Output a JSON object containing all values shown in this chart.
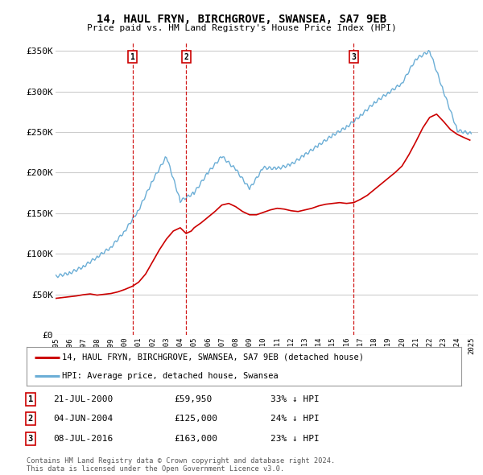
{
  "title": "14, HAUL FRYN, BIRCHGROVE, SWANSEA, SA7 9EB",
  "subtitle": "Price paid vs. HM Land Registry's House Price Index (HPI)",
  "xlim": [
    1995.0,
    2025.5
  ],
  "ylim": [
    0,
    360000
  ],
  "yticks": [
    0,
    50000,
    100000,
    150000,
    200000,
    250000,
    300000,
    350000
  ],
  "ytick_labels": [
    "£0",
    "£50K",
    "£100K",
    "£150K",
    "£200K",
    "£250K",
    "£300K",
    "£350K"
  ],
  "xticks": [
    1995,
    1996,
    1997,
    1998,
    1999,
    2000,
    2001,
    2002,
    2003,
    2004,
    2005,
    2006,
    2007,
    2008,
    2009,
    2010,
    2011,
    2012,
    2013,
    2014,
    2015,
    2016,
    2017,
    2018,
    2019,
    2020,
    2021,
    2022,
    2023,
    2024,
    2025
  ],
  "transactions": [
    {
      "date": 2000.55,
      "price": 59950,
      "label": "1",
      "pct": "33%",
      "date_str": "21-JUL-2000",
      "price_str": "£59,950"
    },
    {
      "date": 2004.42,
      "price": 125000,
      "label": "2",
      "pct": "24%",
      "date_str": "04-JUN-2004",
      "price_str": "£125,000"
    },
    {
      "date": 2016.52,
      "price": 163000,
      "label": "3",
      "pct": "23%",
      "date_str": "08-JUL-2016",
      "price_str": "£163,000"
    }
  ],
  "hpi_color": "#6baed6",
  "price_color": "#cc0000",
  "vline_color": "#cc0000",
  "grid_color": "#cccccc",
  "bg_color": "#ffffff",
  "legend_label_price": "14, HAUL FRYN, BIRCHGROVE, SWANSEA, SA7 9EB (detached house)",
  "legend_label_hpi": "HPI: Average price, detached house, Swansea",
  "footer": "Contains HM Land Registry data © Crown copyright and database right 2024.\nThis data is licensed under the Open Government Licence v3.0."
}
